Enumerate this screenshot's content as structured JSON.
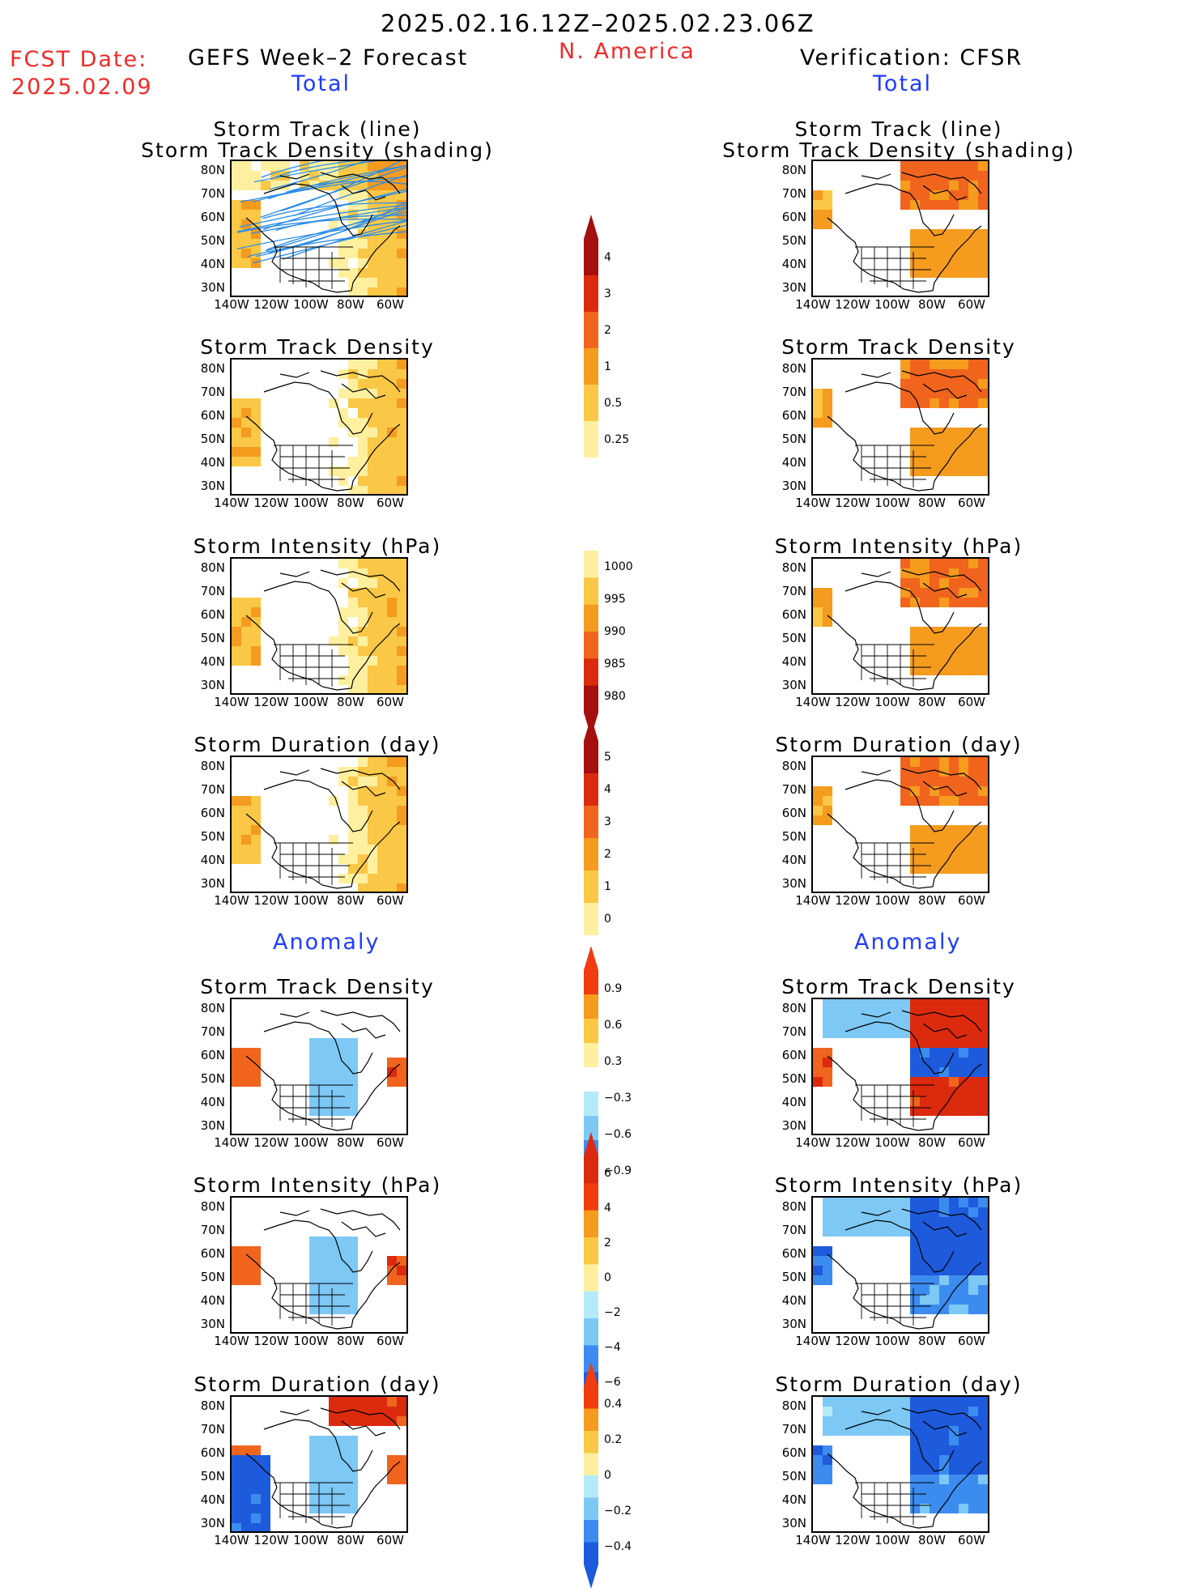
{
  "header": {
    "date_range": "2025.02.16.12Z–2025.02.23.06Z",
    "region": "N. America",
    "fcst_label": "FCST Date:",
    "fcst_date": "2025.02.09",
    "left_title": "GEFS Week–2 Forecast",
    "right_title": "Verification: CFSR",
    "total_label": "Total",
    "anomaly_label": "Anomaly"
  },
  "axes": {
    "lat_labels": [
      "80N",
      "70N",
      "60N",
      "50N",
      "40N",
      "30N"
    ],
    "lon_labels": [
      "140W",
      "120W",
      "100W",
      "80W",
      "60W"
    ]
  },
  "rows": [
    {
      "title1": "Storm Track (line)",
      "title2": "Storm Track Density (shading)"
    },
    {
      "title1": "Storm Track Density"
    },
    {
      "title1": "Storm Intensity (hPa)"
    },
    {
      "title1": "Storm Duration (day)"
    },
    {
      "title1": "Storm Track Density"
    },
    {
      "title1": "Storm Intensity (hPa)"
    },
    {
      "title1": "Storm Duration (day)"
    }
  ],
  "colorbars": [
    {
      "name": "track-density",
      "labels": [
        "4",
        "3",
        "2",
        "1",
        "0.5",
        "0.25"
      ],
      "colors": [
        "#a50f0f",
        "#dc2a0f",
        "#f0641e",
        "#f59b1e",
        "#fac846",
        "#fff0a0"
      ]
    },
    {
      "name": "intensity",
      "labels": [
        "1000",
        "995",
        "990",
        "985",
        "980"
      ],
      "colors": [
        "#fff0a0",
        "#fac846",
        "#f59b1e",
        "#f0641e",
        "#dc2a0f",
        "#a50f0f"
      ]
    },
    {
      "name": "duration",
      "labels": [
        "5",
        "4",
        "3",
        "2",
        "1",
        "0"
      ],
      "colors": [
        "#a50f0f",
        "#dc2a0f",
        "#f0641e",
        "#f59b1e",
        "#fac846",
        "#fff0a0"
      ]
    },
    {
      "name": "density-anomaly",
      "labels": [
        "0.9",
        "0.6",
        "0.3",
        "−0.3",
        "−0.6",
        "−0.9"
      ],
      "colors": [
        "#f03c0f",
        "#f59b1e",
        "#fac846",
        "#fff0a0",
        "#ffffff",
        "#b4ebfa",
        "#7dc8f5",
        "#3c8cf0",
        "#1e5adc"
      ]
    },
    {
      "name": "intensity-anomaly",
      "labels": [
        "6",
        "4",
        "2",
        "0",
        "−2",
        "−4",
        "−6"
      ],
      "colors": [
        "#dc2a0f",
        "#f03c0f",
        "#f59b1e",
        "#fac846",
        "#fff0a0",
        "#b4ebfa",
        "#7dc8f5",
        "#3c8cf0",
        "#1e5adc"
      ]
    },
    {
      "name": "duration-anomaly",
      "labels": [
        "0.4",
        "0.2",
        "0",
        "−0.2",
        "−0.4"
      ],
      "colors": [
        "#f03c0f",
        "#f59b1e",
        "#fac846",
        "#fff0a0",
        "#b4ebfa",
        "#7dc8f5",
        "#3c8cf0",
        "#1e5adc"
      ]
    }
  ]
}
